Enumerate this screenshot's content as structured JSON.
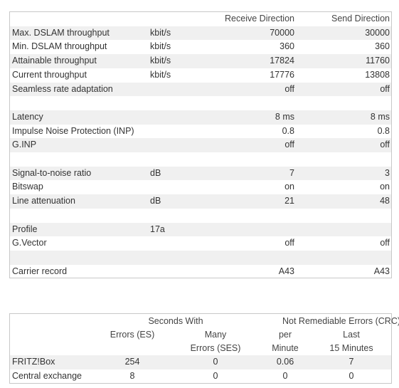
{
  "dsl_table": {
    "header": {
      "receive": "Receive Direction",
      "send": "Send Direction"
    },
    "groups": [
      [
        {
          "label": "Max. DSLAM throughput",
          "unit": "kbit/s",
          "receive": "70000",
          "send": "30000"
        },
        {
          "label": "Min. DSLAM throughput",
          "unit": "kbit/s",
          "receive": "360",
          "send": "360"
        },
        {
          "label": "Attainable throughput",
          "unit": "kbit/s",
          "receive": "17824",
          "send": "11760"
        },
        {
          "label": "Current throughput",
          "unit": "kbit/s",
          "receive": "17776",
          "send": "13808"
        },
        {
          "label": "Seamless rate adaptation",
          "receive": "off",
          "send": "off"
        }
      ],
      [
        {
          "label": "Latency",
          "receive": "8 ms",
          "send": "8 ms"
        },
        {
          "label": "Impulse Noise Protection (INP)",
          "receive": "0.8",
          "send": "0.8"
        },
        {
          "label": "G.INP",
          "receive": "off",
          "send": "off"
        }
      ],
      [
        {
          "label": "Signal-to-noise ratio",
          "unit": "dB",
          "receive": "7",
          "send": "3"
        },
        {
          "label": "Bitswap",
          "receive": "on",
          "send": "on"
        },
        {
          "label": "Line attenuation",
          "unit": "dB",
          "receive": "21",
          "send": "48"
        }
      ],
      [
        {
          "label": "Profile",
          "unit": "17a"
        },
        {
          "label": "G.Vector",
          "receive": "off",
          "send": "off"
        }
      ],
      [
        {
          "label": "Carrier record",
          "receive": "A43",
          "send": "A43"
        }
      ]
    ]
  },
  "error_table": {
    "header_groups": [
      {
        "title": "Seconds With",
        "columns": [
          [
            "Errors (ES)"
          ],
          [
            "Many",
            "Errors (SES)"
          ]
        ]
      },
      {
        "title": "Not Remediable Errors (CRC)",
        "columns": [
          [
            "per",
            "Minute"
          ],
          [
            "Last",
            "15 Minutes"
          ]
        ]
      }
    ],
    "rows": [
      {
        "label": "FRITZ!Box",
        "values": [
          "254",
          "0",
          "0.06",
          "7"
        ]
      },
      {
        "label": "Central exchange",
        "values": [
          "8",
          "0",
          "0",
          "0"
        ]
      }
    ]
  }
}
